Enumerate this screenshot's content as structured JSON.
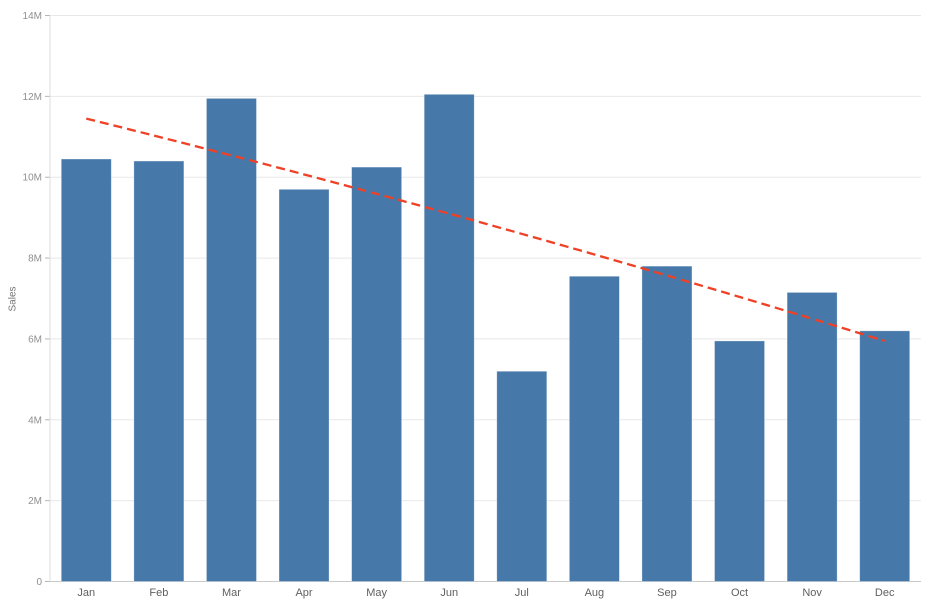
{
  "chart_data": {
    "type": "bar",
    "ylabel": "Sales",
    "categories": [
      "Jan",
      "Feb",
      "Mar",
      "Apr",
      "May",
      "Jun",
      "Jul",
      "Aug",
      "Sep",
      "Oct",
      "Nov",
      "Dec"
    ],
    "series": [
      {
        "name": "Sales",
        "values": [
          10450000,
          10400000,
          11950000,
          9700000,
          10250000,
          12050000,
          5200000,
          7550000,
          7800000,
          5950000,
          7150000,
          6200000
        ]
      }
    ],
    "ylim": [
      0,
      14000000
    ],
    "yticks": [
      {
        "value": 0,
        "label": "0"
      },
      {
        "value": 2000000,
        "label": "2M"
      },
      {
        "value": 4000000,
        "label": "4M"
      },
      {
        "value": 6000000,
        "label": "6M"
      },
      {
        "value": 8000000,
        "label": "8M"
      },
      {
        "value": 10000000,
        "label": "10M"
      },
      {
        "value": 12000000,
        "label": "12M"
      },
      {
        "value": 14000000,
        "label": "14M"
      }
    ],
    "grid": "horizontal",
    "legend_position": "none",
    "bar_color": "#4678a9",
    "trendline": {
      "style": "dashed",
      "color": "#ef4126",
      "start": {
        "category": "Jan",
        "value": 11450000
      },
      "mid_value": 8850000,
      "end": {
        "category": "Dec",
        "value": 5950000
      }
    },
    "colors": {
      "background": "#ffffff",
      "gridline": "#e8e8e8",
      "zero_axis_line": "#c9c9c9",
      "left_axis_line": "#dcdcdc",
      "tick_mark": "#b5b5b5",
      "ytick_text": "#8f8f8f",
      "xtick_text": "#5f5f5f",
      "ylabel_text": "#757575"
    }
  }
}
